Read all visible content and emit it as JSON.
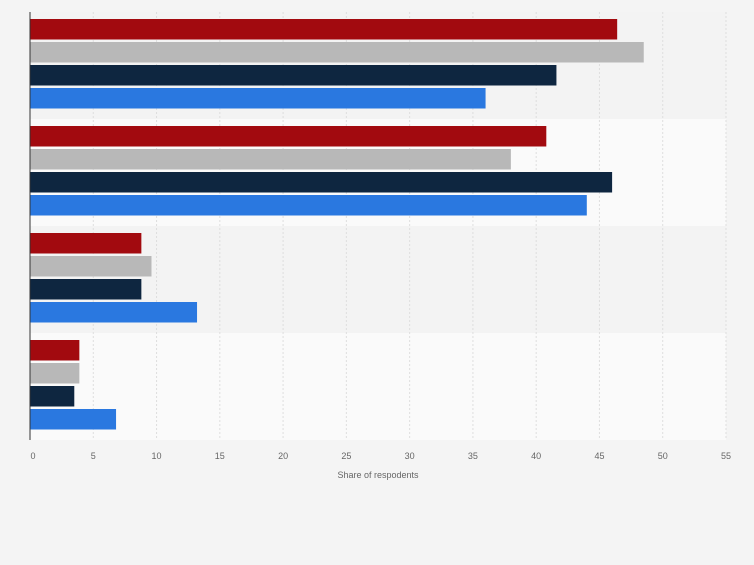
{
  "chart_data": {
    "type": "bar",
    "orientation": "horizontal",
    "title": "",
    "xlabel": "Share of respodents",
    "ylabel": "",
    "xlim": [
      0,
      55
    ],
    "xticks": [
      0,
      5,
      10,
      15,
      20,
      25,
      30,
      35,
      40,
      45,
      50,
      55
    ],
    "grid": true,
    "legend": "none",
    "categories": [
      "",
      "",
      "",
      ""
    ],
    "series": [
      {
        "name": "",
        "color": "#a20a0f",
        "values": [
          46.4,
          40.8,
          8.8,
          3.9
        ]
      },
      {
        "name": "",
        "color": "#b8b8b8",
        "values": [
          48.5,
          38.0,
          9.6,
          3.9
        ]
      },
      {
        "name": "",
        "color": "#0e2640",
        "values": [
          41.6,
          46.0,
          8.8,
          3.5
        ]
      },
      {
        "name": "",
        "color": "#2a78e0",
        "values": [
          36.0,
          44.0,
          13.2,
          6.8
        ]
      }
    ]
  }
}
